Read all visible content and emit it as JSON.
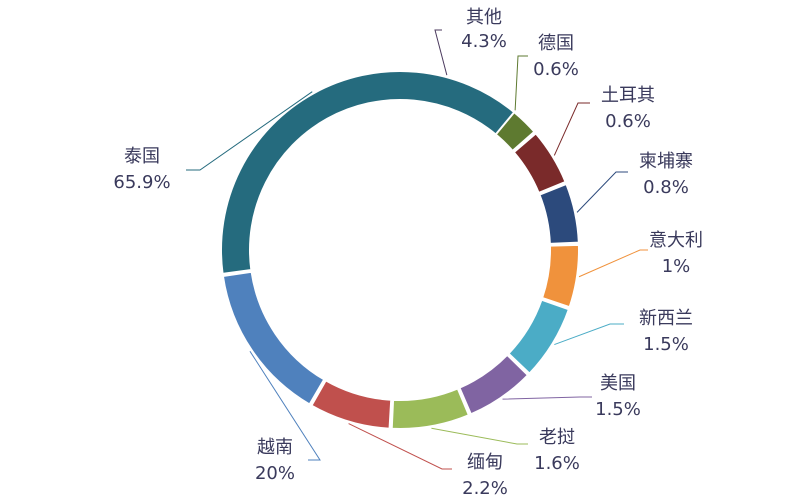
{
  "chart_data": {
    "type": "pie",
    "variant": "donut",
    "unit": "%",
    "slices": [
      {
        "label": "其他",
        "value_text": "4.3%",
        "value": 4.3,
        "color": "#4b3a5e"
      },
      {
        "label": "德国",
        "value_text": "0.6%",
        "value": 0.6,
        "color": "#5e7a30"
      },
      {
        "label": "土耳其",
        "value_text": "0.6%",
        "value": 0.6,
        "color": "#7a2a2a"
      },
      {
        "label": "柬埔寨",
        "value_text": "0.8%",
        "value": 0.8,
        "color": "#2c4a7c"
      },
      {
        "label": "意大利",
        "value_text": "1%",
        "value": 1,
        "color": "#f0923c"
      },
      {
        "label": "新西兰",
        "value_text": "1.5%",
        "value": 1.5,
        "color": "#4bacc6"
      },
      {
        "label": "美国",
        "value_text": "1.5%",
        "value": 1.5,
        "color": "#8064a2"
      },
      {
        "label": "老挝",
        "value_text": "1.6%",
        "value": 1.6,
        "color": "#9bbb59"
      },
      {
        "label": "缅甸",
        "value_text": "2.2%",
        "value": 2.2,
        "color": "#c0504d"
      },
      {
        "label": "越南",
        "value_text": "20%",
        "value": 20,
        "color": "#4f81bd"
      },
      {
        "label": "泰国",
        "value_text": "65.9%",
        "value": 65.9,
        "color": "#256b7e"
      }
    ],
    "legend": "none",
    "labels_position": "outside-with-leader-lines"
  }
}
